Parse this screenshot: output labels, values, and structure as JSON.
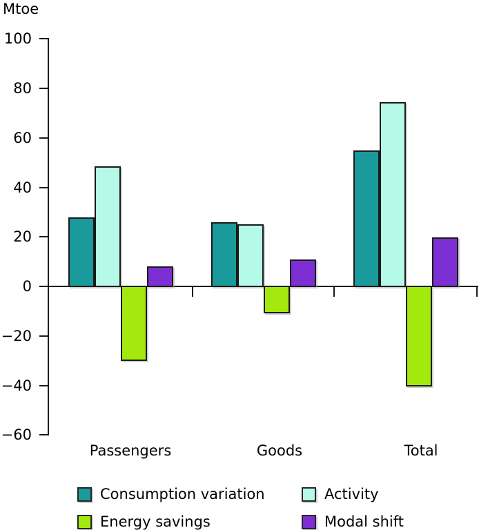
{
  "chart_data": {
    "type": "bar",
    "title": "",
    "ylabel": "Mtoe",
    "xlabel": "",
    "categories": [
      "Passengers",
      "Goods",
      "Total"
    ],
    "series": [
      {
        "name": "Consumption variation",
        "color": "#1A9A9B",
        "values": [
          28,
          26,
          55
        ]
      },
      {
        "name": "Activity",
        "color": "#B5FAE8",
        "values": [
          48.5,
          25,
          74.5
        ]
      },
      {
        "name": "Energy savings",
        "color": "#A3E90E",
        "values": [
          -30,
          -11,
          -40.5
        ]
      },
      {
        "name": "Modal shift",
        "color": "#7C2FD2",
        "values": [
          8,
          11,
          19.7
        ]
      }
    ],
    "ylim": [
      -60,
      100
    ],
    "yticks": [
      100,
      80,
      60,
      40,
      20,
      0,
      -20,
      -40,
      -60
    ],
    "ytick_labels": [
      "100",
      "80",
      "60",
      "40",
      "20",
      "0",
      "−20",
      "−40",
      "−60"
    ],
    "grid": false,
    "legend_position": "bottom",
    "axis_color": "#1a1a1a",
    "bar_outline_color": "#1a1a1a",
    "text_color": "#000000",
    "background_color": "#ffffff"
  }
}
